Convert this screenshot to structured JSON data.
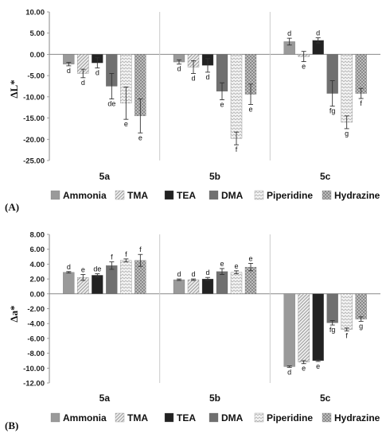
{
  "chart_data": [
    {
      "type": "bar",
      "panel_label": "(A)",
      "ylabel": "ΔL*",
      "ylim": [
        -25,
        10
      ],
      "ytick_step": 5,
      "categories": [
        "5a",
        "5b",
        "5c"
      ],
      "series": [
        {
          "name": "Ammonia",
          "values": [
            -2.3,
            -1.8,
            3.0
          ],
          "errors": [
            0.4,
            0.5,
            0.8
          ],
          "letters": [
            "d",
            "d",
            "d"
          ]
        },
        {
          "name": "TMA",
          "values": [
            -4.5,
            -3.0,
            -0.5
          ],
          "errors": [
            1.0,
            1.5,
            1.2
          ],
          "letters": [
            "d",
            "d",
            "e"
          ]
        },
        {
          "name": "TEA",
          "values": [
            -2.0,
            -2.6,
            3.3
          ],
          "errors": [
            1.2,
            1.6,
            0.6
          ],
          "letters": [
            "d",
            "d",
            "d"
          ]
        },
        {
          "name": "DMA",
          "values": [
            -7.5,
            -8.7,
            -9.2
          ],
          "errors": [
            3.0,
            2.0,
            3.0
          ],
          "letters": [
            "de",
            "e",
            "fg"
          ]
        },
        {
          "name": "Piperidine",
          "values": [
            -11.5,
            -19.8,
            -16.0
          ],
          "errors": [
            3.8,
            1.5,
            1.5
          ],
          "letters": [
            "e",
            "f",
            "g"
          ]
        },
        {
          "name": "Hydrazine",
          "values": [
            -14.5,
            -9.4,
            -9.2
          ],
          "errors": [
            4.0,
            2.4,
            1.2
          ],
          "letters": [
            "e",
            "e",
            "f"
          ]
        }
      ]
    },
    {
      "type": "bar",
      "panel_label": "(B)",
      "ylabel": "Δa*",
      "ylim": [
        -12,
        8
      ],
      "ytick_step": 2,
      "categories": [
        "5a",
        "5b",
        "5c"
      ],
      "series": [
        {
          "name": "Ammonia",
          "values": [
            2.9,
            1.9,
            -9.8
          ],
          "errors": [
            0.1,
            0.1,
            0.1
          ],
          "letters": [
            "d",
            "d",
            "d"
          ]
        },
        {
          "name": "TMA",
          "values": [
            2.2,
            1.9,
            -9.2
          ],
          "errors": [
            0.4,
            0.1,
            0.2
          ],
          "letters": [
            "e",
            "d",
            "e"
          ]
        },
        {
          "name": "TEA",
          "values": [
            2.5,
            2.0,
            -9.0
          ],
          "errors": [
            0.2,
            0.2,
            0.1
          ],
          "letters": [
            "de",
            "d",
            "e"
          ]
        },
        {
          "name": "DMA",
          "values": [
            3.8,
            3.0,
            -3.9
          ],
          "errors": [
            0.5,
            0.4,
            0.3
          ],
          "letters": [
            "f",
            "e",
            "fg"
          ]
        },
        {
          "name": "Piperidine",
          "values": [
            4.5,
            2.9,
            -4.8
          ],
          "errors": [
            0.2,
            0.2,
            0.2
          ],
          "letters": [
            "f",
            "e",
            "f"
          ]
        },
        {
          "name": "Hydrazine",
          "values": [
            4.5,
            3.6,
            -3.4
          ],
          "errors": [
            0.8,
            0.5,
            0.3
          ],
          "letters": [
            "f",
            "e",
            "g"
          ]
        }
      ]
    }
  ],
  "legend": {
    "items": [
      {
        "label": "Ammonia",
        "pattern": "solid-gray"
      },
      {
        "label": "TMA",
        "pattern": "diagonal-light"
      },
      {
        "label": "TEA",
        "pattern": "solid-black"
      },
      {
        "label": "DMA",
        "pattern": "solid-darkgray"
      },
      {
        "label": "Piperidine",
        "pattern": "zigzag-white"
      },
      {
        "label": "Hydrazine",
        "pattern": "checker-gray"
      }
    ]
  },
  "colors": {
    "ammonia": "#9a9a9a",
    "tea": "#222222",
    "dma": "#707070",
    "axis": "#888888",
    "divider": "#cccccc"
  }
}
